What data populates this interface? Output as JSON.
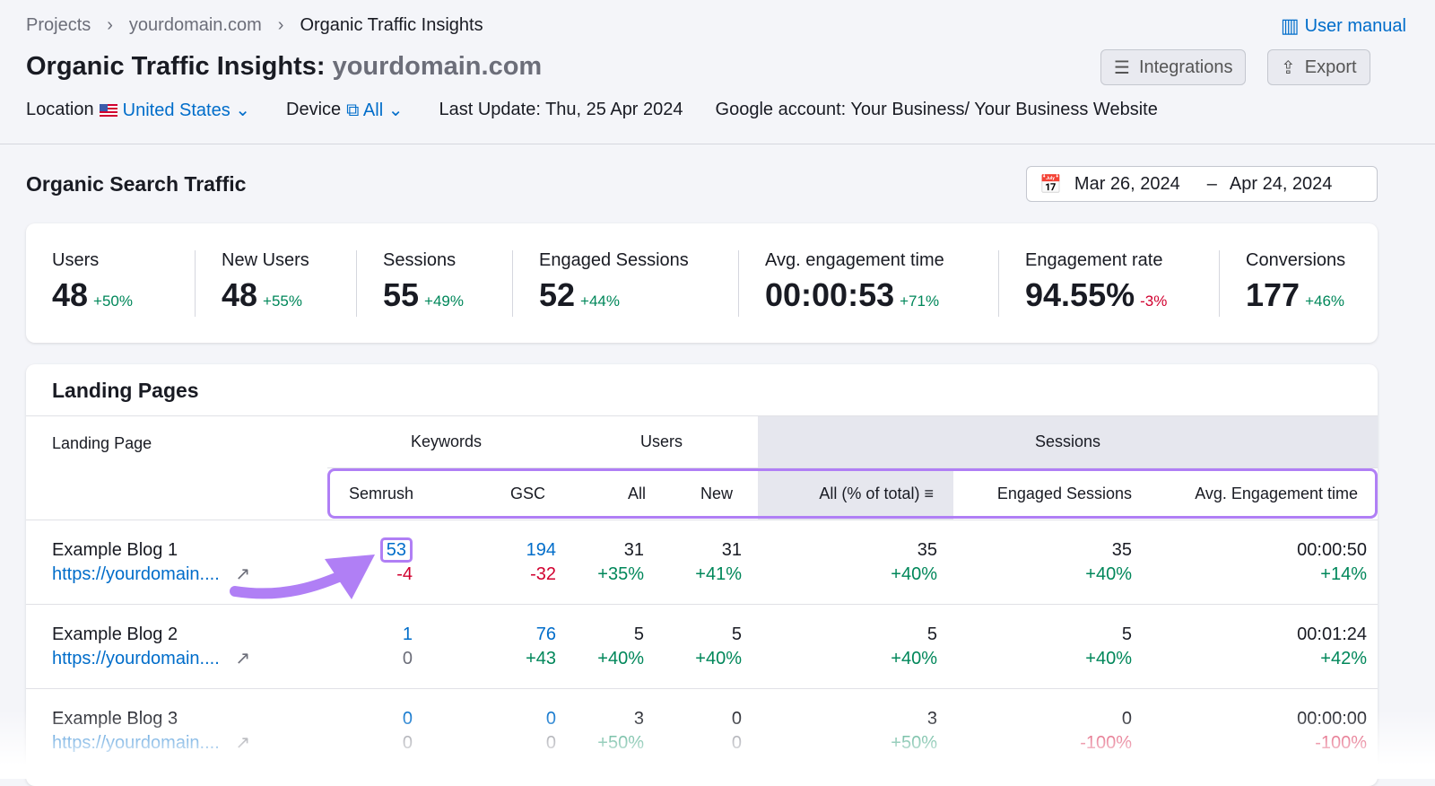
{
  "breadcrumb": [
    "Projects",
    "yourdomain.com",
    "Organic Traffic Insights"
  ],
  "user_manual": "User manual",
  "title": "Organic Traffic Insights:",
  "domain": "yourdomain.com",
  "buttons": {
    "integrations": "Integrations",
    "export": "Export"
  },
  "filters": {
    "location_label": "Location",
    "location": "United States",
    "device_label": "Device",
    "device": "All",
    "last_update": "Last Update: Thu, 25 Apr 2024",
    "google_account": "Google account: Your Business/ Your Business Website"
  },
  "section_title": "Organic Search Traffic",
  "date_range": {
    "start": "Mar 26, 2024",
    "sep": "–",
    "end": "Apr 24, 2024"
  },
  "metrics": [
    {
      "label": "Users",
      "value": "48",
      "delta": "+50%",
      "trend": "up"
    },
    {
      "label": "New Users",
      "value": "48",
      "delta": "+55%",
      "trend": "up"
    },
    {
      "label": "Sessions",
      "value": "55",
      "delta": "+49%",
      "trend": "up"
    },
    {
      "label": "Engaged Sessions",
      "value": "52",
      "delta": "+44%",
      "trend": "up"
    },
    {
      "label": "Avg. engagement time",
      "value": "00:00:53",
      "delta": "+71%",
      "trend": "up"
    },
    {
      "label": "Engagement rate",
      "value": "94.55%",
      "delta": "-3%",
      "trend": "down"
    },
    {
      "label": "Conversions",
      "value": "177",
      "delta": "+46%",
      "trend": "up"
    }
  ],
  "landing": {
    "title": "Landing Pages",
    "groups": {
      "landing_page": "Landing Page",
      "keywords": "Keywords",
      "users": "Users",
      "sessions": "Sessions"
    },
    "columns": [
      "Semrush",
      "GSC",
      "All",
      "New",
      "All (% of total)",
      "Engaged Sessions",
      "Avg. Engagement time"
    ],
    "rows": [
      {
        "name": "Example Blog 1",
        "url": "https://yourdomain....",
        "semrush": "53",
        "semrush_d": "-4",
        "gsc": "194",
        "gsc_d": "-32",
        "all": "31",
        "all_d": "+35%",
        "new": "31",
        "new_d": "+41%",
        "s_all": "35",
        "s_all_d": "+40%",
        "eng": "35",
        "eng_d": "+40%",
        "avg": "00:00:50",
        "avg_d": "+14%"
      },
      {
        "name": "Example Blog 2",
        "url": "https://yourdomain....",
        "semrush": "1",
        "semrush_d": "0",
        "gsc": "76",
        "gsc_d": "+43",
        "all": "5",
        "all_d": "+40%",
        "new": "5",
        "new_d": "+40%",
        "s_all": "5",
        "s_all_d": "+40%",
        "eng": "5",
        "eng_d": "+40%",
        "avg": "00:01:24",
        "avg_d": "+42%"
      },
      {
        "name": "Example Blog 3",
        "url": "https://yourdomain....",
        "semrush": "0",
        "semrush_d": "0",
        "gsc": "0",
        "gsc_d": "0",
        "all": "3",
        "all_d": "+50%",
        "new": "0",
        "new_d": "0",
        "s_all": "3",
        "s_all_d": "+50%",
        "eng": "0",
        "eng_d": "-100%",
        "avg": "00:00:00",
        "avg_d": "-100%"
      }
    ]
  },
  "colors": {
    "accent": "#006dca",
    "positive": "#00875a",
    "negative": "#d1002f",
    "highlight": "#b07ff5"
  }
}
